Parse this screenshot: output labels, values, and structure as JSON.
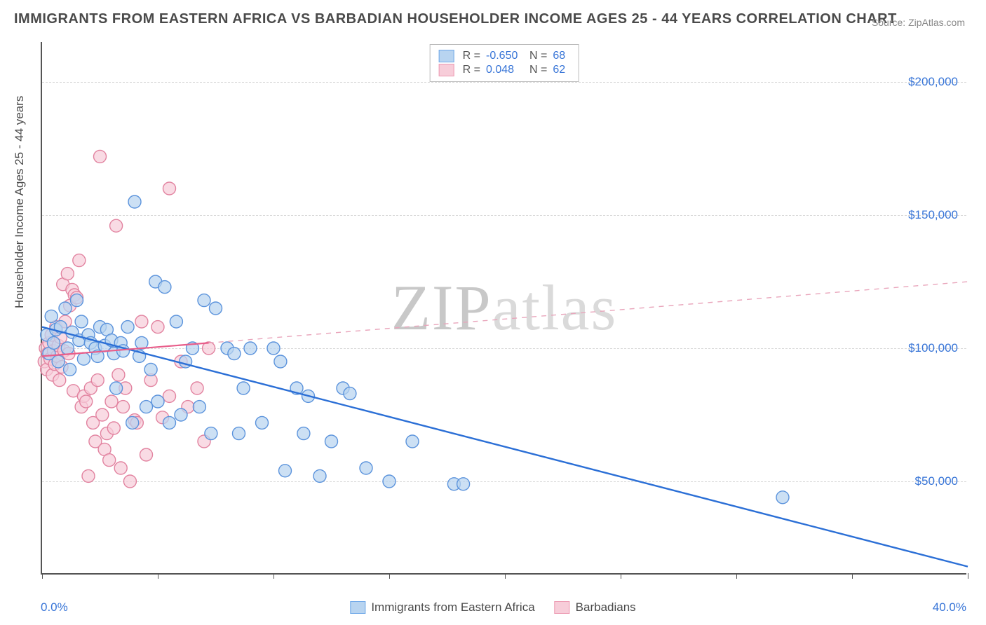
{
  "title": "IMMIGRANTS FROM EASTERN AFRICA VS BARBADIAN HOUSEHOLDER INCOME AGES 25 - 44 YEARS CORRELATION CHART",
  "source": "Source: ZipAtlas.com",
  "watermark": "ZIPatlas",
  "yaxis_title": "Householder Income Ages 25 - 44 years",
  "xaxis_labels": {
    "left": "0.0%",
    "right": "40.0%"
  },
  "xlim": [
    0,
    40
  ],
  "ylim": [
    15000,
    215000
  ],
  "xticks": [
    0,
    5,
    10,
    15,
    20,
    25,
    30,
    35,
    40
  ],
  "yticks": [
    50000,
    100000,
    150000,
    200000
  ],
  "ytick_labels": [
    "$50,000",
    "$100,000",
    "$150,000",
    "$200,000"
  ],
  "grid_color": "#d8d8d8",
  "background_color": "#ffffff",
  "legend_stats": [
    {
      "color_fill": "#b8d4f0",
      "color_stroke": "#6fa8e8",
      "r": "-0.650",
      "n": "68"
    },
    {
      "color_fill": "#f7cdd9",
      "color_stroke": "#ec9ab2",
      "r": "0.048",
      "n": "62"
    }
  ],
  "bottom_legend": [
    {
      "label": "Immigrants from Eastern Africa",
      "fill": "#b8d4f0",
      "stroke": "#6fa8e8"
    },
    {
      "label": "Barbadians",
      "fill": "#f7cdd9",
      "stroke": "#ec9ab2"
    }
  ],
  "series_blue": {
    "marker_fill": "#b8d4f0",
    "marker_stroke": "#5b93dc",
    "marker_opacity": 0.72,
    "marker_radius": 9,
    "line_color": "#2b6fd6",
    "line_width": 2.4,
    "trend": {
      "x1": 0,
      "y1": 108000,
      "x2": 40,
      "y2": 18000
    },
    "points": [
      [
        0.2,
        105000
      ],
      [
        0.3,
        98000
      ],
      [
        0.4,
        112000
      ],
      [
        0.5,
        102000
      ],
      [
        0.6,
        107000
      ],
      [
        0.7,
        95000
      ],
      [
        0.8,
        108000
      ],
      [
        1.0,
        115000
      ],
      [
        1.1,
        100000
      ],
      [
        1.2,
        92000
      ],
      [
        1.3,
        106000
      ],
      [
        1.5,
        118000
      ],
      [
        1.6,
        103000
      ],
      [
        1.7,
        110000
      ],
      [
        1.8,
        96000
      ],
      [
        2.0,
        105000
      ],
      [
        2.1,
        102000
      ],
      [
        2.3,
        100000
      ],
      [
        2.4,
        97000
      ],
      [
        2.5,
        108000
      ],
      [
        2.7,
        101000
      ],
      [
        2.8,
        107000
      ],
      [
        3.0,
        103000
      ],
      [
        3.1,
        98000
      ],
      [
        3.2,
        85000
      ],
      [
        3.4,
        102000
      ],
      [
        3.5,
        99000
      ],
      [
        3.7,
        108000
      ],
      [
        3.9,
        72000
      ],
      [
        4.0,
        155000
      ],
      [
        4.2,
        97000
      ],
      [
        4.3,
        102000
      ],
      [
        4.5,
        78000
      ],
      [
        4.7,
        92000
      ],
      [
        4.9,
        125000
      ],
      [
        5.0,
        80000
      ],
      [
        5.3,
        123000
      ],
      [
        5.5,
        72000
      ],
      [
        5.8,
        110000
      ],
      [
        6.0,
        75000
      ],
      [
        6.2,
        95000
      ],
      [
        6.5,
        100000
      ],
      [
        6.8,
        78000
      ],
      [
        7.0,
        118000
      ],
      [
        7.3,
        68000
      ],
      [
        7.5,
        115000
      ],
      [
        8.0,
        100000
      ],
      [
        8.3,
        98000
      ],
      [
        8.5,
        68000
      ],
      [
        8.7,
        85000
      ],
      [
        9.0,
        100000
      ],
      [
        9.5,
        72000
      ],
      [
        10.0,
        100000
      ],
      [
        10.3,
        95000
      ],
      [
        10.5,
        54000
      ],
      [
        11.0,
        85000
      ],
      [
        11.3,
        68000
      ],
      [
        11.5,
        82000
      ],
      [
        12.0,
        52000
      ],
      [
        12.5,
        65000
      ],
      [
        13.0,
        85000
      ],
      [
        13.3,
        83000
      ],
      [
        14.0,
        55000
      ],
      [
        15.0,
        50000
      ],
      [
        16.0,
        65000
      ],
      [
        17.8,
        49000
      ],
      [
        18.2,
        49000
      ],
      [
        32.0,
        44000
      ]
    ]
  },
  "series_pink": {
    "marker_fill": "#f7cdd9",
    "marker_stroke": "#e283a0",
    "marker_opacity": 0.72,
    "marker_radius": 9,
    "line_solid_color": "#e85d8a",
    "line_solid_width": 2.2,
    "line_dash_color": "#e9a5bb",
    "line_dash_width": 1.4,
    "trend_solid": {
      "x1": 0,
      "y1": 97000,
      "x2": 7.2,
      "y2": 102000
    },
    "trend_dash": {
      "x1": 7.2,
      "y1": 102000,
      "x2": 40,
      "y2": 125000
    },
    "points": [
      [
        0.1,
        95000
      ],
      [
        0.15,
        100000
      ],
      [
        0.2,
        92000
      ],
      [
        0.25,
        98000
      ],
      [
        0.3,
        102000
      ],
      [
        0.35,
        96000
      ],
      [
        0.4,
        105000
      ],
      [
        0.45,
        90000
      ],
      [
        0.5,
        99000
      ],
      [
        0.55,
        94000
      ],
      [
        0.6,
        108000
      ],
      [
        0.65,
        97000
      ],
      [
        0.7,
        101000
      ],
      [
        0.75,
        88000
      ],
      [
        0.8,
        104000
      ],
      [
        0.85,
        93000
      ],
      [
        0.9,
        124000
      ],
      [
        0.95,
        99000
      ],
      [
        1.0,
        110000
      ],
      [
        1.1,
        128000
      ],
      [
        1.15,
        98000
      ],
      [
        1.2,
        116000
      ],
      [
        1.3,
        122000
      ],
      [
        1.35,
        84000
      ],
      [
        1.4,
        120000
      ],
      [
        1.5,
        119000
      ],
      [
        1.6,
        133000
      ],
      [
        1.7,
        78000
      ],
      [
        1.8,
        82000
      ],
      [
        1.9,
        80000
      ],
      [
        2.0,
        52000
      ],
      [
        2.1,
        85000
      ],
      [
        2.2,
        72000
      ],
      [
        2.3,
        65000
      ],
      [
        2.4,
        88000
      ],
      [
        2.5,
        172000
      ],
      [
        2.6,
        75000
      ],
      [
        2.7,
        62000
      ],
      [
        2.8,
        68000
      ],
      [
        2.9,
        58000
      ],
      [
        3.0,
        80000
      ],
      [
        3.1,
        70000
      ],
      [
        3.2,
        146000
      ],
      [
        3.3,
        90000
      ],
      [
        3.4,
        55000
      ],
      [
        3.5,
        78000
      ],
      [
        3.6,
        85000
      ],
      [
        3.8,
        50000
      ],
      [
        4.0,
        73000
      ],
      [
        4.1,
        72000
      ],
      [
        4.3,
        110000
      ],
      [
        4.5,
        60000
      ],
      [
        4.7,
        88000
      ],
      [
        5.0,
        108000
      ],
      [
        5.2,
        74000
      ],
      [
        5.5,
        82000
      ],
      [
        5.5,
        160000
      ],
      [
        6.0,
        95000
      ],
      [
        6.3,
        78000
      ],
      [
        6.7,
        85000
      ],
      [
        7.0,
        65000
      ],
      [
        7.2,
        100000
      ]
    ]
  }
}
